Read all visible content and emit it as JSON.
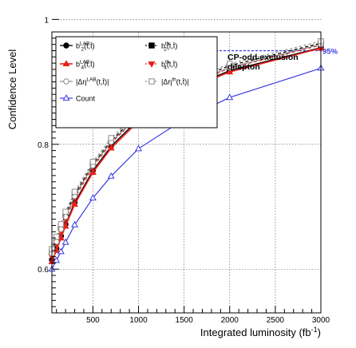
{
  "chart_data": {
    "type": "line",
    "title": "",
    "xlabel": "Integrated luminosity (fb",
    "xlabel_sup": "-1",
    "xlabel_close": ")",
    "ylabel": "Confidence Level",
    "xlim": [
      50,
      3000
    ],
    "ylim": [
      0.53,
      0.98
    ],
    "x_ticks": [
      500,
      1000,
      1500,
      2000,
      2500,
      3000
    ],
    "x_tick_labels": [
      "500",
      "1000",
      "1500",
      "2000",
      "2500",
      "3000"
    ],
    "y_ticks": [
      0.6,
      0.8,
      1
    ],
    "y_tick_labels": [
      "0.6",
      "0.8",
      "1"
    ],
    "grid": true,
    "legend_position": "top-left",
    "reference_line": {
      "y": 0.95,
      "label": "95%",
      "color": "#3a3ae0"
    },
    "annotation": {
      "line1": "CP-odd exclusion",
      "line2": "dilepton"
    },
    "x": [
      50,
      100,
      150,
      200,
      300,
      500,
      700,
      1000,
      1500,
      2000,
      3000
    ],
    "series": [
      {
        "name": "b₂ᴸᴬᴮ(t,t̄)",
        "legend_text": "b",
        "sub": "2",
        "sup": "LAB",
        "tail": "(t,t̄)",
        "color": "#000000",
        "marker": "filled-circle",
        "dash": "solid",
        "width": 1.3,
        "values": [
          0.615,
          0.633,
          0.653,
          0.672,
          0.707,
          0.758,
          0.797,
          0.84,
          0.888,
          0.918,
          0.955
        ]
      },
      {
        "name": "b₂ᵗʰ(t,t̄)",
        "legend_text": "b",
        "sub": "2",
        "sup": "th",
        "tail": "(t,t̄)",
        "color": "#000000",
        "marker": "filled-square",
        "dash": "4,3",
        "width": 1.3,
        "values": [
          0.628,
          0.648,
          0.668,
          0.688,
          0.72,
          0.768,
          0.806,
          0.849,
          0.897,
          0.926,
          0.962
        ]
      },
      {
        "name": "b₄ᴸᴬᴮ(t,t̄)",
        "legend_text": "b",
        "sub": "4",
        "sup": "LAB",
        "tail": "(t,t̄)",
        "color": "#e8201a",
        "marker": "filled-triangle-up",
        "dash": "solid",
        "width": 1.6,
        "values": [
          0.612,
          0.63,
          0.65,
          0.669,
          0.704,
          0.755,
          0.794,
          0.837,
          0.886,
          0.916,
          0.954
        ]
      },
      {
        "name": "b₄ᵗʰ(t,t̄)",
        "legend_text": "b",
        "sub": "4",
        "sup": "th",
        "tail": "(t,t̄)",
        "color": "#e8201a",
        "marker": "filled-triangle-down",
        "dash": "4,3",
        "width": 1.3,
        "values": [
          0.62,
          0.64,
          0.66,
          0.68,
          0.714,
          0.764,
          0.802,
          0.845,
          0.893,
          0.922,
          0.959
        ]
      },
      {
        "name": "|Δηᴸᴬᴮ(t,t̄)|",
        "legend_text": "|Δη",
        "sub": "",
        "sup": "LAB",
        "tail": "(t,t̄)|",
        "color": "#8c8c8c",
        "marker": "open-circle",
        "dash": "solid",
        "width": 1.2,
        "values": [
          0.625,
          0.644,
          0.664,
          0.684,
          0.717,
          0.766,
          0.804,
          0.846,
          0.894,
          0.923,
          0.96
        ]
      },
      {
        "name": "|Δηᵗʰ(t,t̄)|",
        "legend_text": "|Δη",
        "sub": "",
        "sup": "th",
        "tail": "(t,t̄)|",
        "color": "#8c8c8c",
        "marker": "open-square",
        "dash": "3,3",
        "width": 1.2,
        "values": [
          0.632,
          0.652,
          0.672,
          0.692,
          0.724,
          0.772,
          0.81,
          0.853,
          0.9,
          0.929,
          0.965
        ]
      },
      {
        "name": "Count",
        "legend_text": "Count",
        "sub": "",
        "sup": "",
        "tail": "",
        "color": "#3a3ae0",
        "marker": "open-triangle-up",
        "dash": "solid",
        "width": 1.2,
        "values": [
          0.6,
          0.614,
          0.628,
          0.643,
          0.671,
          0.714,
          0.749,
          0.793,
          0.84,
          0.875,
          0.922
        ]
      }
    ]
  }
}
